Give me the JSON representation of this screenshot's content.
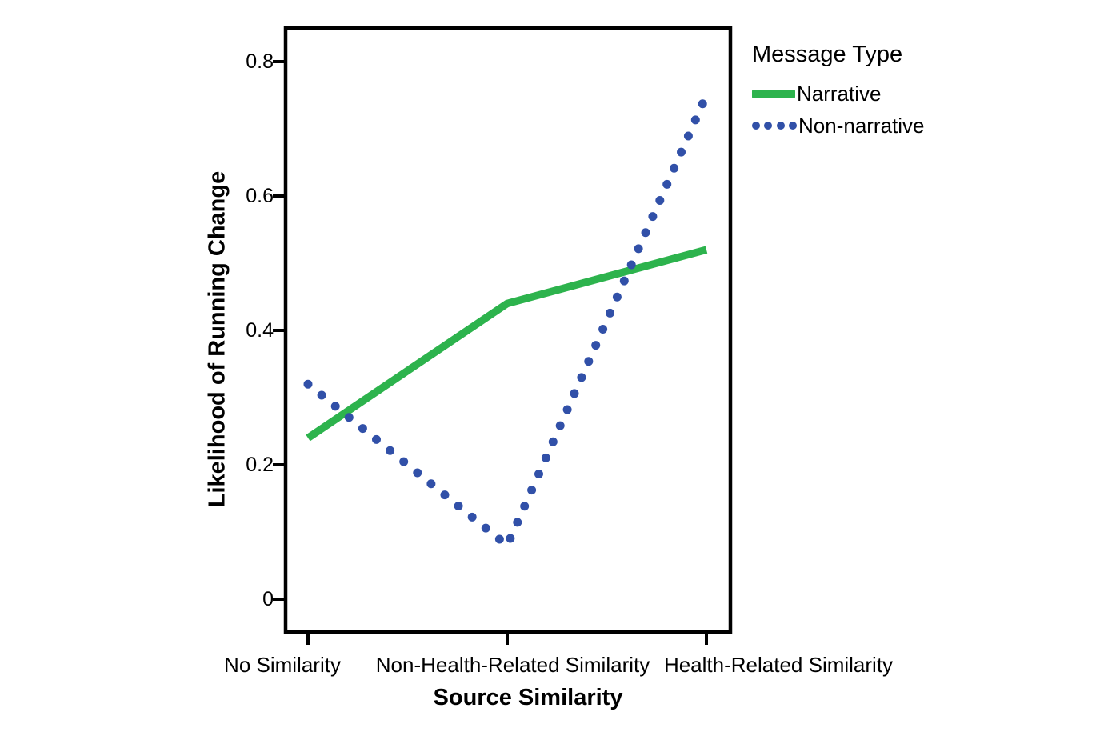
{
  "legend": {
    "title": "Message Type",
    "items": [
      {
        "label": "Narrative",
        "style": "solid",
        "color": "#2db34d"
      },
      {
        "label": "Non-narrative",
        "style": "dotted",
        "color": "#3150a8"
      }
    ]
  },
  "chart_data": {
    "type": "line",
    "title": "",
    "xlabel": "Source Similarity",
    "ylabel": "Likelihood of Running Change",
    "categories": [
      "No Similarity",
      "Non-Health-Related Similarity",
      "Health-Related Similarity"
    ],
    "series": [
      {
        "name": "Narrative",
        "style": "solid",
        "color": "#2db34d",
        "values": [
          0.24,
          0.44,
          0.52
        ]
      },
      {
        "name": "Non-narrative",
        "style": "dotted",
        "color": "#3150a8",
        "values": [
          0.32,
          0.08,
          0.75
        ]
      }
    ],
    "y_ticks": [
      "0",
      "0.2",
      "0.4",
      "0.6",
      "0.8"
    ],
    "y_tick_values": [
      0,
      0.2,
      0.4,
      0.6,
      0.8
    ],
    "ylim": [
      0,
      0.85
    ],
    "grid": false,
    "legend_position": "top-right",
    "frame_color": "#000000"
  }
}
